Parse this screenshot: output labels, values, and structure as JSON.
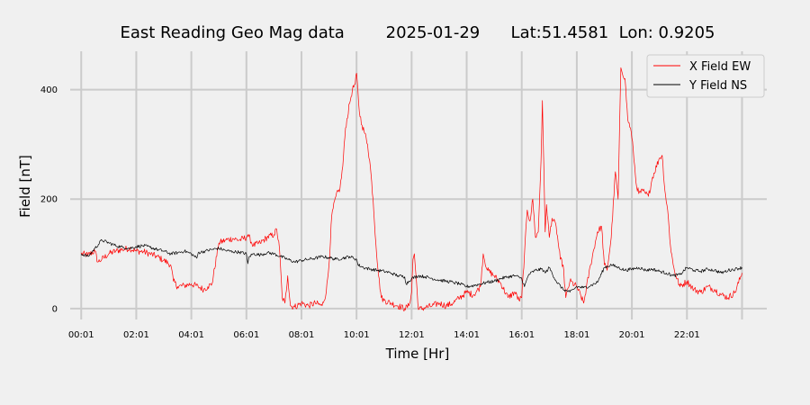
{
  "chart_data": {
    "type": "line",
    "title": "East Reading Geo Mag data        2025-01-29      Lat:51.4581  Lon: 0.9205",
    "xlabel": "Time  [Hr]",
    "ylabel": "Field  [nT]",
    "x_tick_labels": [
      "00:01",
      "02:01",
      "04:01",
      "06:01",
      "08:01",
      "10:01",
      "12:01",
      "14:01",
      "16:01",
      "18:01",
      "20:01",
      "22:01"
    ],
    "y_ticks": [
      0,
      200,
      400
    ],
    "xlim_hours": [
      -0.4,
      24.9
    ],
    "ylim": [
      -20,
      470
    ],
    "grid": true,
    "legend_position": "top-right",
    "x_units": "hours",
    "series": [
      {
        "name": "X Field EW",
        "color": "#ff0000",
        "x": [
          0,
          0.25,
          0.5,
          0.6,
          0.75,
          1,
          1.25,
          1.5,
          1.75,
          2,
          2.25,
          2.5,
          2.75,
          3,
          3.25,
          3.35,
          3.5,
          3.75,
          4,
          4.25,
          4.45,
          4.6,
          4.75,
          5,
          5.25,
          5.5,
          5.75,
          6,
          6.05,
          6.25,
          6.5,
          6.75,
          7,
          7.1,
          7.2,
          7.3,
          7.4,
          7.5,
          7.6,
          7.75,
          8,
          8.25,
          8.5,
          8.75,
          8.9,
          9,
          9.1,
          9.25,
          9.4,
          9.5,
          9.6,
          9.75,
          9.85,
          9.95,
          10.0,
          10.1,
          10.2,
          10.3,
          10.4,
          10.5,
          10.6,
          10.7,
          10.8,
          10.9,
          11.0,
          11.25,
          11.5,
          11.75,
          11.9,
          12.0,
          12.05,
          12.1,
          12.25,
          12.5,
          12.75,
          13,
          13.25,
          13.5,
          13.75,
          14,
          14.25,
          14.5,
          14.6,
          14.75,
          15,
          15.25,
          15.5,
          15.75,
          15.9,
          16.0,
          16.1,
          16.2,
          16.3,
          16.4,
          16.5,
          16.6,
          16.7,
          16.75,
          16.85,
          16.9,
          17.0,
          17.1,
          17.25,
          17.4,
          17.5,
          17.6,
          17.75,
          18,
          18.25,
          18.5,
          18.75,
          18.9,
          19.0,
          19.1,
          19.25,
          19.4,
          19.5,
          19.6,
          19.75,
          19.85,
          19.95,
          20.05,
          20.15,
          20.25,
          20.4,
          20.5,
          20.6,
          20.75,
          21,
          21.1,
          21.2,
          21.3,
          21.4,
          21.5,
          21.6,
          21.75,
          22,
          22.25,
          22.5,
          22.75,
          23,
          23.25,
          23.5,
          23.75,
          24.0
        ],
        "y": [
          100,
          98,
          105,
          85,
          90,
          100,
          105,
          108,
          110,
          105,
          104,
          100,
          95,
          88,
          80,
          50,
          40,
          42,
          45,
          40,
          35,
          40,
          45,
          120,
          125,
          128,
          125,
          130,
          135,
          115,
          120,
          130,
          135,
          145,
          110,
          20,
          10,
          60,
          5,
          3,
          10,
          5,
          10,
          5,
          30,
          80,
          170,
          205,
          220,
          260,
          330,
          375,
          400,
          410,
          430,
          360,
          335,
          320,
          300,
          260,
          200,
          120,
          60,
          20,
          15,
          10,
          5,
          0,
          5,
          30,
          90,
          100,
          -2,
          2,
          5,
          10,
          5,
          10,
          20,
          30,
          25,
          40,
          100,
          70,
          60,
          45,
          20,
          30,
          15,
          20,
          100,
          180,
          160,
          200,
          130,
          140,
          270,
          380,
          140,
          190,
          130,
          165,
          150,
          90,
          80,
          20,
          50,
          40,
          10,
          80,
          140,
          150,
          80,
          70,
          130,
          250,
          200,
          440,
          420,
          345,
          330,
          290,
          230,
          210,
          215,
          210,
          205,
          240,
          275,
          280,
          215,
          180,
          115,
          80,
          60,
          40,
          50,
          35,
          30,
          40,
          35,
          25,
          20,
          30,
          65
        ]
      },
      {
        "name": "Y Field NS",
        "color": "#000000",
        "x": [
          0,
          0.25,
          0.5,
          0.75,
          1,
          1.25,
          1.5,
          1.75,
          2,
          2.25,
          2.5,
          2.75,
          3,
          3.25,
          3.5,
          3.75,
          4,
          4.2,
          4.25,
          4.5,
          4.75,
          5,
          5.25,
          5.5,
          5.75,
          6,
          6.05,
          6.1,
          6.25,
          6.5,
          6.75,
          7,
          7.25,
          7.5,
          7.75,
          8,
          8.25,
          8.5,
          8.75,
          9,
          9.25,
          9.5,
          9.75,
          10,
          10.05,
          10.25,
          10.5,
          10.75,
          11,
          11.25,
          11.5,
          11.75,
          11.8,
          12,
          12.25,
          12.5,
          12.75,
          13,
          13.25,
          13.5,
          13.75,
          14,
          14.25,
          14.5,
          14.75,
          15,
          15.25,
          15.5,
          15.75,
          16,
          16.1,
          16.25,
          16.5,
          16.75,
          16.85,
          17,
          17.25,
          17.5,
          17.75,
          18,
          18.25,
          18.5,
          18.75,
          19,
          19.25,
          19.5,
          19.75,
          20,
          20.25,
          20.5,
          20.75,
          21,
          21.25,
          21.5,
          21.75,
          22,
          22.25,
          22.5,
          22.75,
          23,
          23.25,
          23.5,
          23.75,
          24.0
        ],
        "y": [
          100,
          95,
          110,
          125,
          120,
          115,
          112,
          110,
          113,
          115,
          112,
          108,
          105,
          100,
          102,
          105,
          100,
          92,
          102,
          105,
          108,
          110,
          106,
          104,
          103,
          100,
          82,
          95,
          100,
          98,
          102,
          100,
          95,
          90,
          85,
          88,
          90,
          92,
          95,
          93,
          90,
          92,
          95,
          90,
          80,
          75,
          72,
          70,
          68,
          65,
          60,
          58,
          45,
          55,
          60,
          58,
          55,
          52,
          50,
          48,
          45,
          40,
          42,
          45,
          48,
          50,
          55,
          58,
          60,
          55,
          40,
          62,
          70,
          72,
          65,
          75,
          50,
          35,
          30,
          40,
          38,
          42,
          48,
          75,
          80,
          75,
          70,
          72,
          75,
          70,
          72,
          68,
          65,
          60,
          62,
          75,
          70,
          68,
          72,
          70,
          65,
          70,
          72,
          75
        ]
      }
    ]
  }
}
